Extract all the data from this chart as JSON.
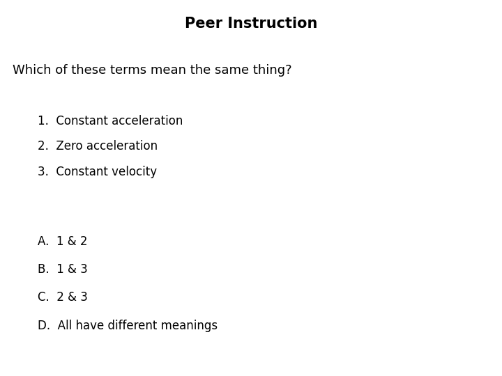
{
  "title": "Peer Instruction",
  "question": "Which of these terms mean the same thing?",
  "numbered_items": [
    "1.  Constant acceleration",
    "2.  Zero acceleration",
    "3.  Constant velocity"
  ],
  "lettered_items": [
    "A.  1 & 2",
    "B.  1 & 3",
    "C.  2 & 3",
    "D.  All have different meanings"
  ],
  "bg_color": "#ffffff",
  "text_color": "#000000",
  "title_fontsize": 15,
  "title_fontweight": "bold",
  "question_fontsize": 13,
  "item_fontsize": 12,
  "font_family": "DejaVu Sans"
}
